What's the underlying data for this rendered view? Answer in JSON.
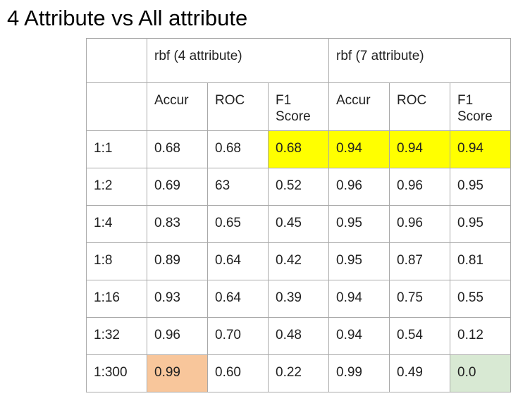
{
  "title": "4 Attribute vs All attribute",
  "table": {
    "groups": [
      {
        "label": "rbf (4 attribute)"
      },
      {
        "label": "rbf (7 attribute)"
      }
    ],
    "metrics": [
      "Accur",
      "ROC",
      "F1\nScore",
      "Accur",
      "ROC",
      "F1\nScore"
    ],
    "rows": [
      {
        "ratio": "1:1",
        "values": [
          "0.68",
          "0.68",
          "0.68",
          "0.94",
          "0.94",
          "0.94"
        ]
      },
      {
        "ratio": "1:2",
        "values": [
          "0.69",
          "63",
          "0.52",
          "0.96",
          "0.96",
          "0.95"
        ]
      },
      {
        "ratio": "1:4",
        "values": [
          "0.83",
          "0.65",
          "0.45",
          "0.95",
          "0.96",
          "0.95"
        ]
      },
      {
        "ratio": "1:8",
        "values": [
          "0.89",
          "0.64",
          "0.42",
          "0.95",
          "0.87",
          "0.81"
        ]
      },
      {
        "ratio": "1:16",
        "values": [
          "0.93",
          "0.64",
          "0.39",
          "0.94",
          "0.75",
          "0.55"
        ]
      },
      {
        "ratio": "1:32",
        "values": [
          "0.96",
          "0.70",
          "0.48",
          "0.94",
          "0.54",
          "0.12"
        ]
      },
      {
        "ratio": "1:300",
        "values": [
          "0.99",
          "0.60",
          "0.22",
          "0.99",
          "0.49",
          "0.0"
        ]
      }
    ],
    "highlight_colors": {
      "yellow": "#ffff00",
      "orange": "#f8c69b",
      "green": "#d8e9d3"
    }
  }
}
